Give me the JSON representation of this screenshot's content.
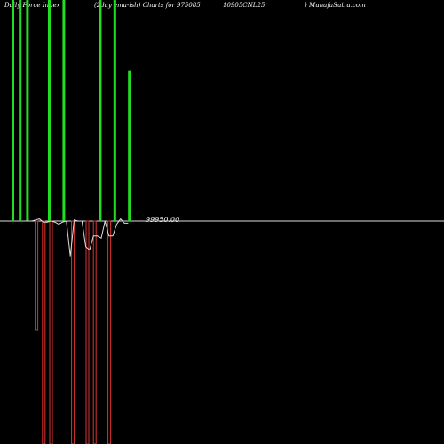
{
  "header": {
    "part1": "Daily Force  Index",
    "part2": "(2day ema-ish) Charts for 975085",
    "part3": "10905CNL25",
    "part4": ") MunafaSutra.com"
  },
  "chart_data": {
    "type": "bar",
    "title": "Daily Force Index",
    "zero_label": "99950.00",
    "colors": {
      "positive": "#22dd22",
      "negative": "#dd3333",
      "line": "#dddddd",
      "zero": "#dddddd",
      "background": "#000000"
    },
    "positive_bars": [
      {
        "i": 0,
        "value": 100
      },
      {
        "i": 1,
        "value": 100
      },
      {
        "i": 2,
        "value": 100
      },
      {
        "i": 5,
        "value": 100
      },
      {
        "i": 7,
        "value": 100
      },
      {
        "i": 12,
        "value": 100
      },
      {
        "i": 14,
        "value": 100
      },
      {
        "i": 16,
        "value": 68
      }
    ],
    "negative_bars": [
      {
        "i": 3,
        "value": -49
      },
      {
        "i": 4,
        "value": -100
      },
      {
        "i": 5,
        "value": -100
      },
      {
        "i": 8,
        "value": -100
      },
      {
        "i": 10,
        "value": -100
      },
      {
        "i": 11,
        "value": -100
      },
      {
        "i": 13,
        "value": -100
      }
    ],
    "line_values": [
      0,
      0,
      0,
      0.5,
      1,
      -0.5,
      -0.5,
      0,
      -0.5,
      -1.5,
      -0.5,
      0,
      -16.5,
      0.5,
      0,
      0,
      -12,
      -13.5,
      -7,
      -7,
      -8,
      0,
      -7,
      -7,
      -1.5,
      1,
      -1,
      -1
    ],
    "line_x_start": 27,
    "line_x_step": 4.35,
    "bar_x_start": 13,
    "bar_x_step": 8.2,
    "bar_width": 3,
    "y_range": [
      -100,
      100
    ]
  }
}
